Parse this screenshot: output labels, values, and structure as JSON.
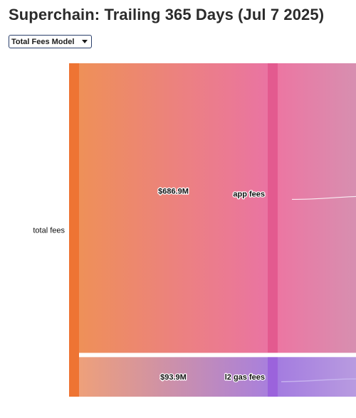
{
  "title": "Superchain: Trailing 365 Days (Jul 7 2025)",
  "model_select": {
    "selected": "Total Fees Model"
  },
  "chart_data": {
    "type": "sankey",
    "title": "Superchain: Trailing 365 Days (Jul 7 2025)",
    "nodes": [
      {
        "name": "total fees",
        "color": "#ee7433"
      },
      {
        "name": "app fees",
        "color": "#e35a8f"
      },
      {
        "name": "l2 gas fees",
        "color": "#9b63dc"
      }
    ],
    "links": [
      {
        "source": "total fees",
        "target": "app fees",
        "value": 686.9,
        "label": "$686.9M"
      },
      {
        "source": "total fees",
        "target": "l2 gas fees",
        "value": 93.9,
        "label": "$93.9M"
      }
    ],
    "unit": "USD millions"
  }
}
